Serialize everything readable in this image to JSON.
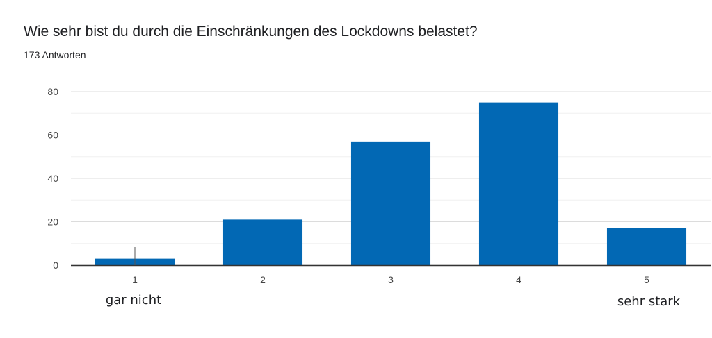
{
  "header": {
    "question": "Wie sehr bist du durch die Einschränkungen des Lockdowns belastet?",
    "responses": "173 Antworten"
  },
  "chart_data": {
    "type": "bar",
    "categories": [
      "1",
      "2",
      "3",
      "4",
      "5"
    ],
    "values": [
      3,
      21,
      57,
      75,
      17
    ],
    "ylim": [
      0,
      80
    ],
    "yticks": [
      0,
      20,
      40,
      60,
      80
    ],
    "grid": true,
    "bar_color": "#0268b4",
    "anchor_labels": {
      "low": "gar nicht",
      "high": "sehr stark"
    }
  }
}
